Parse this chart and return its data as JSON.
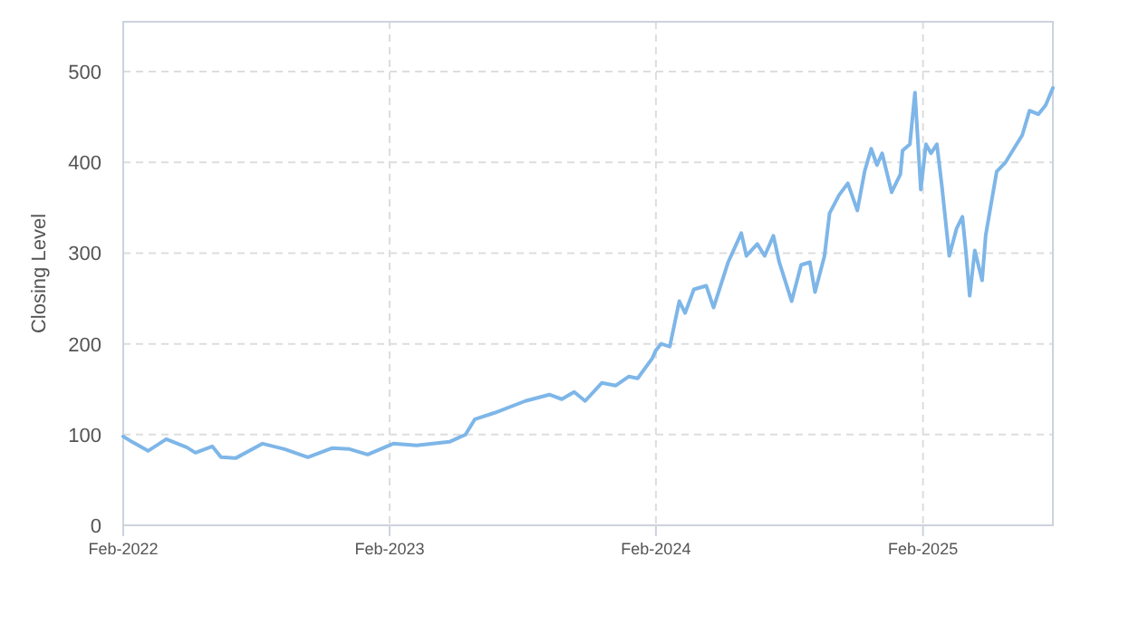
{
  "chart_data": {
    "type": "line",
    "ylabel": "Closing Level",
    "grid": true,
    "xlim": [
      "2022-02-01",
      "2025-07-29"
    ],
    "ylim": [
      0,
      555
    ],
    "xticks": [
      {
        "value": "2022-02-01",
        "label": "Feb-2022"
      },
      {
        "value": "2023-02-01",
        "label": "Feb-2023"
      },
      {
        "value": "2024-02-01",
        "label": "Feb-2024"
      },
      {
        "value": "2025-02-01",
        "label": "Feb-2025"
      }
    ],
    "yticks": [
      0,
      100,
      200,
      300,
      400,
      500
    ],
    "x": [
      "2022-02-01",
      "2022-02-13",
      "2022-03-07",
      "2022-04-01",
      "2022-04-29",
      "2022-05-11",
      "2022-06-03",
      "2022-06-15",
      "2022-07-05",
      "2022-08-11",
      "2022-09-10",
      "2022-10-12",
      "2022-11-14",
      "2022-12-08",
      "2023-01-02",
      "2023-02-06",
      "2023-03-10",
      "2023-04-24",
      "2023-05-16",
      "2023-05-29",
      "2023-06-25",
      "2023-08-06",
      "2023-09-08",
      "2023-09-25",
      "2023-10-12",
      "2023-10-27",
      "2023-11-19",
      "2023-12-08",
      "2023-12-26",
      "2024-01-07",
      "2024-01-27",
      "2024-02-01",
      "2024-02-08",
      "2024-02-20",
      "2024-03-04",
      "2024-03-12",
      "2024-03-24",
      "2024-04-10",
      "2024-04-20",
      "2024-05-10",
      "2024-05-28",
      "2024-06-04",
      "2024-06-19",
      "2024-06-29",
      "2024-07-11",
      "2024-07-19",
      "2024-08-05",
      "2024-08-18",
      "2024-08-30",
      "2024-09-06",
      "2024-09-19",
      "2024-09-26",
      "2024-10-09",
      "2024-10-21",
      "2024-11-03",
      "2024-11-13",
      "2024-11-22",
      "2024-11-30",
      "2024-12-07",
      "2024-12-20",
      "2025-01-01",
      "2025-01-04",
      "2025-01-14",
      "2025-01-21",
      "2025-01-29",
      "2025-02-05",
      "2025-02-12",
      "2025-02-20",
      "2025-02-27",
      "2025-03-09",
      "2025-03-19",
      "2025-03-27",
      "2025-04-01",
      "2025-04-06",
      "2025-04-13",
      "2025-04-23",
      "2025-04-28",
      "2025-05-13",
      "2025-05-25",
      "2025-06-07",
      "2025-06-17",
      "2025-06-27",
      "2025-07-09",
      "2025-07-19",
      "2025-07-29"
    ],
    "series": [
      {
        "color": "#7eb6e8",
        "values": [
          98,
          92,
          82,
          95,
          86,
          80,
          87,
          75,
          74,
          90,
          84,
          75,
          85,
          84,
          78,
          90,
          88,
          92,
          100,
          117,
          124,
          137,
          144,
          139,
          147,
          137,
          157,
          154,
          164,
          162,
          184,
          193,
          200,
          197,
          247,
          234,
          260,
          264,
          240,
          290,
          322,
          297,
          310,
          297,
          319,
          290,
          247,
          287,
          290,
          257,
          297,
          344,
          364,
          377,
          347,
          390,
          415,
          397,
          410,
          367,
          387,
          413,
          420,
          477,
          370,
          420,
          410,
          420,
          373,
          297,
          327,
          340,
          300,
          253,
          303,
          270,
          320,
          390,
          400,
          417,
          430,
          457,
          453,
          463,
          482
        ]
      }
    ]
  }
}
